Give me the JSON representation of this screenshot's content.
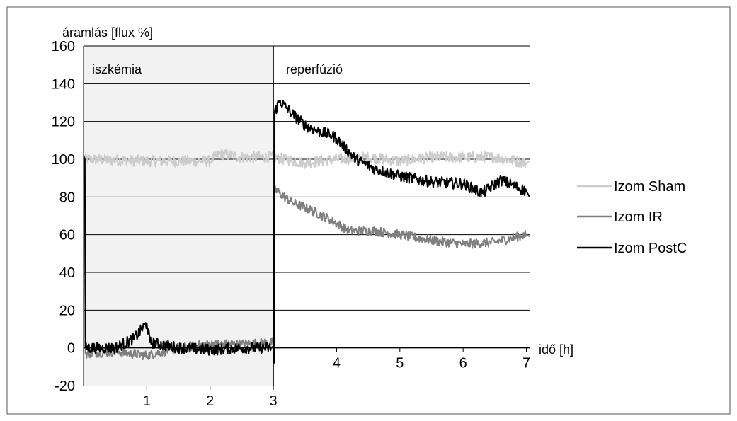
{
  "chart_data": {
    "type": "line",
    "title": "",
    "ylabel": "áramlás [flux %]",
    "xlabel": "idő [h]",
    "ylim": [
      -20,
      160
    ],
    "yticks": [
      -20,
      0,
      20,
      40,
      60,
      80,
      100,
      120,
      140,
      160
    ],
    "xlim": [
      0,
      7.05
    ],
    "xticks": [
      1,
      2,
      3,
      4,
      5,
      6,
      7
    ],
    "grid": "horizontal",
    "legend_position": "right",
    "regions": [
      {
        "label": "iszkémia",
        "from": 0,
        "to": 3,
        "shaded": true
      },
      {
        "label": "reperfúzió",
        "from": 3,
        "to": 7.05,
        "shaded": false
      }
    ],
    "series": [
      {
        "name": "Izom Sham",
        "color": "#cccccc",
        "noise": 3,
        "points": [
          [
            0,
            100
          ],
          [
            1,
            99
          ],
          [
            2,
            99
          ],
          [
            2.15,
            103
          ],
          [
            2.5,
            101
          ],
          [
            3,
            101
          ],
          [
            3.5,
            98
          ],
          [
            4,
            100
          ],
          [
            4.5,
            101
          ],
          [
            5,
            99
          ],
          [
            5.5,
            101
          ],
          [
            6,
            101
          ],
          [
            6.5,
            101
          ],
          [
            7,
            98
          ],
          [
            7.05,
            99
          ]
        ]
      },
      {
        "name": "Izom IR",
        "color": "#7f7f7f",
        "noise": 2.5,
        "points": [
          [
            0,
            100
          ],
          [
            0.02,
            100
          ],
          [
            0.03,
            -3
          ],
          [
            0.5,
            -2
          ],
          [
            1,
            -4
          ],
          [
            1.5,
            0
          ],
          [
            2,
            2
          ],
          [
            2.5,
            2
          ],
          [
            3,
            3
          ],
          [
            3.01,
            -5
          ],
          [
            3.02,
            84
          ],
          [
            3.3,
            77
          ],
          [
            3.6,
            73
          ],
          [
            3.9,
            68
          ],
          [
            4.2,
            62
          ],
          [
            4.6,
            62
          ],
          [
            5,
            60
          ],
          [
            5.5,
            57
          ],
          [
            6,
            55
          ],
          [
            6.5,
            56
          ],
          [
            7,
            60
          ],
          [
            7.05,
            59
          ]
        ]
      },
      {
        "name": "Izom PostC",
        "color": "#000000",
        "noise": 3,
        "points": [
          [
            0,
            102
          ],
          [
            0.02,
            100
          ],
          [
            0.03,
            0
          ],
          [
            0.5,
            0
          ],
          [
            0.8,
            5
          ],
          [
            1,
            13
          ],
          [
            1.05,
            3
          ],
          [
            1.5,
            0
          ],
          [
            2,
            -1
          ],
          [
            2.5,
            0
          ],
          [
            3,
            0
          ],
          [
            3.01,
            -8
          ],
          [
            3.02,
            125
          ],
          [
            3.1,
            131
          ],
          [
            3.3,
            124
          ],
          [
            3.5,
            118
          ],
          [
            3.7,
            115
          ],
          [
            3.9,
            113
          ],
          [
            4,
            111
          ],
          [
            4.3,
            100
          ],
          [
            4.6,
            95
          ],
          [
            5,
            91
          ],
          [
            5.5,
            88
          ],
          [
            6,
            87
          ],
          [
            6.3,
            82
          ],
          [
            6.6,
            89
          ],
          [
            7,
            83
          ],
          [
            7.05,
            80
          ]
        ]
      }
    ]
  }
}
